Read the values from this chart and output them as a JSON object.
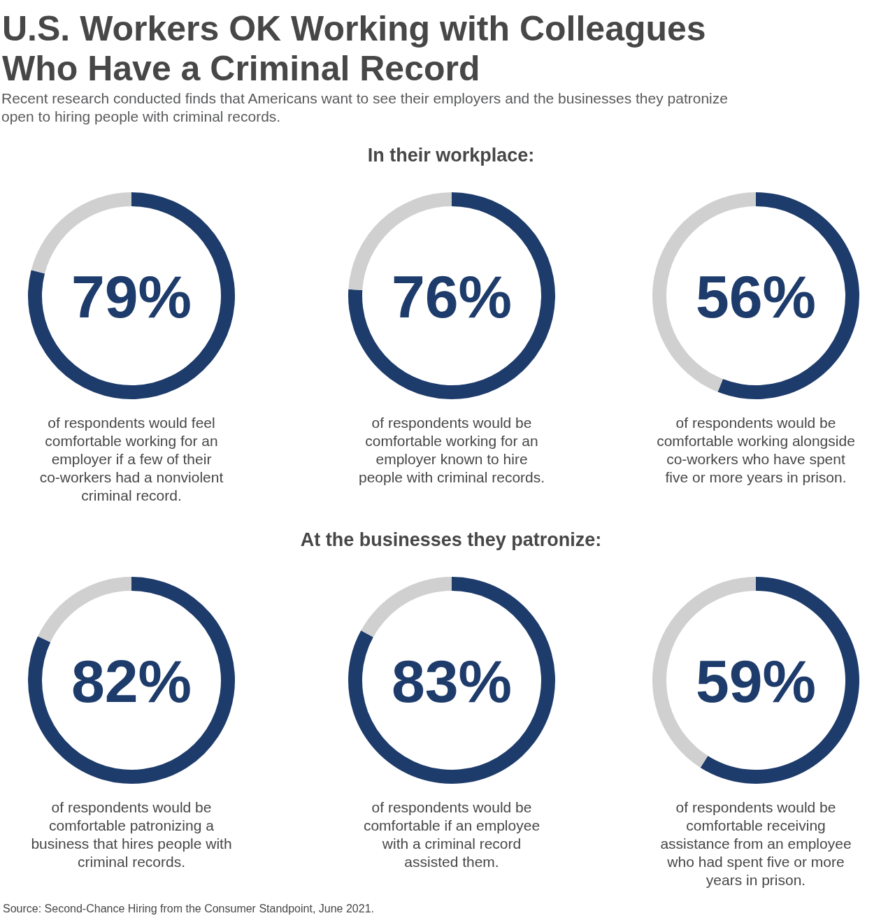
{
  "chart_data": [
    {
      "type": "other",
      "title": "U.S. Workers OK Working with Colleagues\nWho Have a Criminal Record",
      "subtitle": "Recent research conducted finds that Americans want to see their employers and the businesses they patronize\nopen to hiring people with criminal records."
    },
    {
      "type": "other",
      "title": "In their workplace:"
    },
    {
      "type": "donut",
      "categories": [
        null,
        null
      ],
      "values": [
        79,
        21
      ],
      "colors": [
        "#1d3b6b",
        "#d0d0d0"
      ],
      "value_labels": [
        "79%",
        null
      ],
      "annotations": [
        "of respondents would feel\ncomfortable working for an\nemployer if a few of their\nco-workers had a nonviolent\ncriminal record."
      ]
    },
    {
      "type": "donut",
      "categories": [
        null,
        null
      ],
      "values": [
        76,
        24
      ],
      "colors": [
        "#1d3b6b",
        "#d0d0d0"
      ],
      "value_labels": [
        "76%",
        null
      ],
      "annotations": [
        "of respondents would be\ncomfortable working for an\nemployer known to hire\npeople with criminal records."
      ]
    },
    {
      "type": "donut",
      "categories": [
        null,
        null
      ],
      "values": [
        56,
        44
      ],
      "colors": [
        "#1d3b6b",
        "#d0d0d0"
      ],
      "value_labels": [
        "56%",
        null
      ],
      "annotations": [
        "of respondents would be\ncomfortable working alongside\nco-workers who have spent\nfive or more years in prison."
      ]
    },
    {
      "type": "other",
      "title": "At the businesses they patronize:"
    },
    {
      "type": "donut",
      "categories": [
        null,
        null
      ],
      "values": [
        82,
        18
      ],
      "colors": [
        "#1d3b6b",
        "#d0d0d0"
      ],
      "value_labels": [
        "82%",
        null
      ],
      "annotations": [
        "of respondents would be\ncomfortable patronizing a\nbusiness that hires people with\ncriminal records."
      ]
    },
    {
      "type": "donut",
      "categories": [
        null,
        null
      ],
      "values": [
        83,
        17
      ],
      "colors": [
        "#1d3b6b",
        "#d0d0d0"
      ],
      "value_labels": [
        "83%",
        null
      ],
      "annotations": [
        "of respondents would be\ncomfortable if an employee\nwith a criminal record\nassisted them."
      ]
    },
    {
      "type": "donut",
      "categories": [
        null,
        null
      ],
      "values": [
        59,
        41
      ],
      "colors": [
        "#1d3b6b",
        "#d0d0d0"
      ],
      "value_labels": [
        "59%",
        null
      ],
      "annotations": [
        "of respondents would be\ncomfortable receiving\nassistance from an employee\nwho had spent five or more\nyears in prison."
      ]
    },
    {
      "type": "other",
      "annotations": [
        "Source: Second-Chance Hiring from the Consumer Standpoint, June 2021."
      ]
    }
  ]
}
